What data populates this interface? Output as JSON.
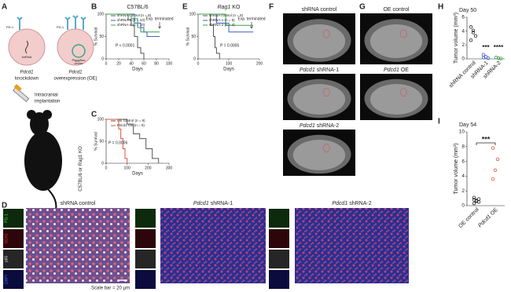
{
  "panel_labels": [
    "A",
    "B",
    "C",
    "D",
    "E",
    "F",
    "G",
    "H",
    "I"
  ],
  "schematic": {
    "receptor_left": "PD-1",
    "receptor_right": "PD-1",
    "shrna": "shRNA",
    "vector": [
      "PiggyBac",
      "vector"
    ],
    "left_caption": [
      "Pdcd1",
      "knockdown"
    ],
    "right_caption": [
      "Pdcd1",
      "overexpression (OE)"
    ],
    "implantation": [
      "Intracranial",
      "implantation"
    ],
    "strain": [
      "C57BL/6 or",
      "Rag1",
      "KO"
    ]
  },
  "chart_data": [
    {
      "type": "survival",
      "title": "C57BL/6",
      "xlabel": "Days",
      "ylabel": "% Survival",
      "xlim": [
        0,
        100
      ],
      "xticks": [
        0,
        20,
        40,
        60,
        80,
        100
      ],
      "ylim": [
        0,
        100
      ],
      "yticks": [
        0,
        50,
        100
      ],
      "series": [
        {
          "name": "shRNA control (n = 8)",
          "color": "#555555",
          "x": [
            0,
            35,
            40,
            45,
            50,
            55,
            60
          ],
          "values": [
            100,
            87.5,
            75,
            50,
            25,
            12.5,
            0
          ]
        },
        {
          "name": "shRNA-1 (n = 10)",
          "color": "#3a5fcd",
          "x": [
            0,
            45,
            55,
            60,
            65,
            85
          ],
          "values": [
            100,
            80,
            70,
            60,
            50,
            50
          ]
        },
        {
          "name": "shRNA-2 (n = 10)",
          "color": "#3aa04a",
          "x": [
            0,
            40,
            50,
            55,
            85
          ],
          "values": [
            100,
            90,
            70,
            60,
            60
          ]
        }
      ],
      "annotations": [
        "P < 0.0001",
        "Exp. terminated"
      ]
    },
    {
      "type": "survival",
      "xlabel": "Days",
      "ylabel": "% Survival",
      "xlim": [
        0,
        300
      ],
      "xticks": [
        0,
        100,
        200,
        300
      ],
      "ylim": [
        0,
        100
      ],
      "yticks": [
        0,
        50,
        100
      ],
      "series": [
        {
          "name": "OE control (n = 9)",
          "color": "#555555",
          "x": [
            0,
            100,
            130,
            160,
            190,
            220,
            250
          ],
          "values": [
            100,
            89,
            67,
            56,
            33,
            11,
            0
          ]
        },
        {
          "name": "Pdcd1 OE (n = 9)",
          "color": "#e0533b",
          "x": [
            0,
            60,
            70,
            80,
            90,
            100
          ],
          "values": [
            100,
            78,
            56,
            33,
            11,
            0
          ]
        }
      ],
      "annotations": [
        "P = 0.0006"
      ]
    },
    {
      "type": "survival",
      "title": [
        "Rag1",
        "KO"
      ],
      "xlabel": "Days",
      "ylabel": "% Survival",
      "xlim": [
        0,
        200
      ],
      "xticks": [
        0,
        100,
        200
      ],
      "ylim": [
        0,
        100
      ],
      "yticks": [
        0,
        50,
        100
      ],
      "series": [
        {
          "name": "shRNA control (n = 8)",
          "color": "#555555",
          "x": [
            0,
            40,
            50,
            55,
            60,
            70
          ],
          "values": [
            100,
            75,
            50,
            25,
            12.5,
            0
          ]
        },
        {
          "name": "shRNA-1 (n = 5)",
          "color": "#3a5fcd",
          "x": [
            0,
            60,
            100,
            180
          ],
          "values": [
            100,
            80,
            60,
            60
          ]
        },
        {
          "name": "shRNA-2 (n = 4)",
          "color": "#3aa04a",
          "x": [
            0,
            90,
            180
          ],
          "values": [
            100,
            75,
            75
          ]
        }
      ],
      "annotations": [
        "P = 0.0005",
        "Exp. terminated"
      ]
    },
    {
      "type": "strip",
      "title": "Day 50",
      "ylabel": "Tumor volume (mm³)",
      "categories": [
        "shRNA control",
        "shRNA-1",
        "shRNA-2"
      ],
      "values": [
        [
          4.6,
          3.8,
          3.3,
          2.7,
          4.1
        ],
        [
          0.6,
          0.3,
          0.1,
          0.2
        ],
        [
          0.2,
          0.1,
          0.05
        ]
      ],
      "colors": [
        "#222222",
        "#3a5fcd",
        "#3aa04a"
      ],
      "ylim": [
        0,
        6
      ],
      "yticks": [
        0,
        2,
        4,
        6
      ],
      "annotations": [
        "***",
        "****"
      ]
    },
    {
      "type": "strip",
      "title": "Day 54",
      "ylabel": "Tumor volume (mm³)",
      "categories": [
        "OE control",
        [
          "Pdcd1",
          "OE"
        ]
      ],
      "values": [
        [
          0.3,
          0.6,
          0.9,
          1.1,
          0.7,
          0.5,
          0.8
        ],
        [
          3.6,
          4.8,
          6.3,
          7.8
        ]
      ],
      "colors": [
        "#222222",
        "#e0533b"
      ],
      "ylim": [
        0,
        10
      ],
      "yticks": [
        0,
        2,
        4,
        6,
        8,
        10
      ],
      "annotations": [
        "***"
      ]
    }
  ],
  "microscopy": {
    "titles": [
      "shRNA control",
      [
        "Pdcd1",
        "shRNA-1"
      ],
      [
        "Pdcd1",
        "shRNA-2"
      ]
    ],
    "channels": [
      "PD-1",
      "SOX2",
      "p65",
      "DAPI"
    ],
    "scale_bar": "Scale bar = 20 µm"
  },
  "mri": {
    "F": [
      "shRNA control",
      [
        "Pdcd1",
        "shRNA-1"
      ],
      [
        "Pdcd1",
        "shRNA-2"
      ]
    ],
    "G": [
      "OE control",
      [
        "Pdcd1",
        "OE"
      ]
    ]
  }
}
